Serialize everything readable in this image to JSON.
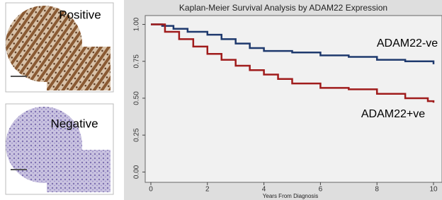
{
  "images": [
    {
      "label": "Positive"
    },
    {
      "label": "Negative"
    }
  ],
  "chart_data": {
    "type": "line",
    "step": true,
    "title": "Kaplan-Meier Survival Analysis by ADAM22 Expression",
    "x_label": "Years From Diagnosis",
    "xlim": [
      -0.2,
      10.05
    ],
    "ylim": [
      -0.07,
      1.06
    ],
    "xticks": [
      0,
      2,
      4,
      6,
      8,
      10
    ],
    "yticks": [
      {
        "value": 0,
        "label": "0.00"
      },
      {
        "value": 0.25,
        "label": "0.25"
      },
      {
        "value": 0.5,
        "label": "0.50"
      },
      {
        "value": 0.75,
        "label": "0.75"
      },
      {
        "value": 1,
        "label": "1.00"
      }
    ],
    "series": [
      {
        "name": "ADAM22-ve",
        "color": "#1f3a6e",
        "x": [
          0,
          0.4,
          0.8,
          1.3,
          2,
          2.5,
          3,
          3.5,
          4,
          5,
          6,
          7,
          8,
          9,
          10
        ],
        "values": [
          1.0,
          0.99,
          0.97,
          0.95,
          0.93,
          0.9,
          0.87,
          0.84,
          0.82,
          0.81,
          0.79,
          0.78,
          0.76,
          0.75,
          0.73
        ]
      },
      {
        "name": "ADAM22+ve",
        "color": "#a01c1c",
        "x": [
          0,
          0.2,
          0.5,
          1,
          1.5,
          2,
          2.5,
          3,
          3.5,
          4,
          4.5,
          5,
          6,
          7,
          8,
          9,
          9.8,
          10
        ],
        "values": [
          1.0,
          1.0,
          0.95,
          0.9,
          0.85,
          0.8,
          0.76,
          0.72,
          0.69,
          0.66,
          0.63,
          0.6,
          0.57,
          0.56,
          0.53,
          0.5,
          0.48,
          0.47
        ]
      }
    ]
  }
}
